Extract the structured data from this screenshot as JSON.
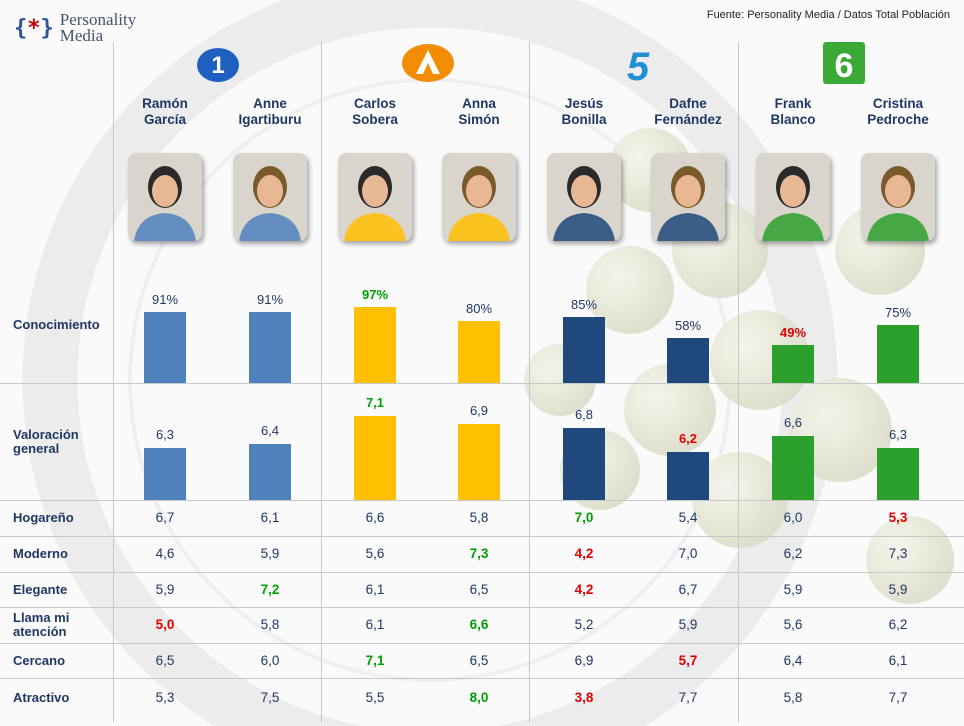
{
  "source": "Fuente: Personality Media / Datos Total Población",
  "brand": {
    "mark_left": "{",
    "mark_star": "*",
    "mark_right": "}",
    "line1": "Personality",
    "line2": "Media"
  },
  "channels": [
    {
      "icon": "la1-logo-icon",
      "label": "1",
      "color": "#1f5fbf"
    },
    {
      "icon": "antena3-logo-icon",
      "label": "",
      "color": "#f28c00"
    },
    {
      "icon": "telecinco-logo-icon",
      "label": "5",
      "color": "#1f8fd6"
    },
    {
      "icon": "lasexta-logo-icon",
      "label": "6",
      "color": "#3aa935"
    }
  ],
  "colors": {
    "la1": "#4f81bd",
    "antena3": "#ffc000",
    "telecinco": "#1f497d",
    "lasexta": "#2ca02c",
    "high": "#00a000",
    "low": "#e00000"
  },
  "chart_data": {
    "type": "bar",
    "categories": [
      "Ramón García",
      "Anne Igartiburu",
      "Carlos Sobera",
      "Anna Simón",
      "Jesús Bonilla",
      "Dafne Fernández",
      "Frank Blanco",
      "Cristina Pedroche"
    ],
    "name_lines": [
      [
        "Ramón",
        "García"
      ],
      [
        "Anne",
        "Igartiburu"
      ],
      [
        "Carlos",
        "Sobera"
      ],
      [
        "Anna",
        "Simón"
      ],
      [
        "Jesús",
        "Bonilla"
      ],
      [
        "Dafne",
        "Fernández"
      ],
      [
        "Frank",
        "Blanco"
      ],
      [
        "Cristina",
        "Pedroche"
      ]
    ],
    "channel_of_presenter": [
      0,
      0,
      1,
      1,
      2,
      2,
      3,
      3
    ],
    "conocimiento": {
      "label": "Conocimiento",
      "values": [
        91,
        91,
        97,
        80,
        85,
        58,
        49,
        75
      ],
      "display": [
        "91%",
        "91%",
        "97%",
        "80%",
        "85%",
        "58%",
        "49%",
        "75%"
      ],
      "flags": [
        "",
        "",
        "hi",
        "",
        "",
        "",
        "lo",
        ""
      ],
      "ylim": [
        0,
        100
      ]
    },
    "valoracion": {
      "label_lines": [
        "Valoración",
        "general"
      ],
      "values": [
        6.3,
        6.4,
        7.1,
        6.9,
        6.8,
        6.2,
        6.6,
        6.3
      ],
      "display": [
        "6,3",
        "6,4",
        "7,1",
        "6,9",
        "6,8",
        "6,2",
        "6,6",
        "6,3"
      ],
      "flags": [
        "",
        "",
        "hi",
        "",
        "",
        "lo",
        "",
        ""
      ],
      "ylim": [
        5,
        7.5
      ]
    },
    "attributes": [
      {
        "label_lines": [
          "Hogareño"
        ],
        "values": [
          "6,7",
          "6,1",
          "6,6",
          "5,8",
          "7,0",
          "5,4",
          "6,0",
          "5,3"
        ],
        "flags": [
          "",
          "",
          "",
          "",
          "hi",
          "",
          "",
          "lo"
        ]
      },
      {
        "label_lines": [
          "Moderno"
        ],
        "values": [
          "4,6",
          "5,9",
          "5,6",
          "7,3",
          "4,2",
          "7,0",
          "6,2",
          "7,3"
        ],
        "flags": [
          "",
          "",
          "",
          "hi",
          "lo",
          "",
          "",
          ""
        ]
      },
      {
        "label_lines": [
          "Elegante"
        ],
        "values": [
          "5,9",
          "7,2",
          "6,1",
          "6,5",
          "4,2",
          "6,7",
          "5,9",
          "5,9"
        ],
        "flags": [
          "",
          "hi",
          "",
          "",
          "lo",
          "",
          "",
          ""
        ]
      },
      {
        "label_lines": [
          "Llama mi",
          "atención"
        ],
        "values": [
          "5,0",
          "5,8",
          "6,1",
          "6,6",
          "5,2",
          "5,9",
          "5,6",
          "6,2"
        ],
        "flags": [
          "lo",
          "",
          "",
          "hi",
          "",
          "",
          "",
          ""
        ]
      },
      {
        "label_lines": [
          "Cercano"
        ],
        "values": [
          "6,5",
          "6,0",
          "7,1",
          "6,5",
          "6,9",
          "5,7",
          "6,4",
          "6,1"
        ],
        "flags": [
          "",
          "",
          "hi",
          "",
          "",
          "lo",
          "",
          ""
        ]
      },
      {
        "label_lines": [
          "Atractivo"
        ],
        "values": [
          "5,3",
          "7,5",
          "5,5",
          "8,0",
          "3,8",
          "7,7",
          "5,8",
          "7,7"
        ],
        "flags": [
          "",
          "",
          "",
          "hi",
          "lo",
          "",
          "",
          ""
        ]
      }
    ]
  }
}
